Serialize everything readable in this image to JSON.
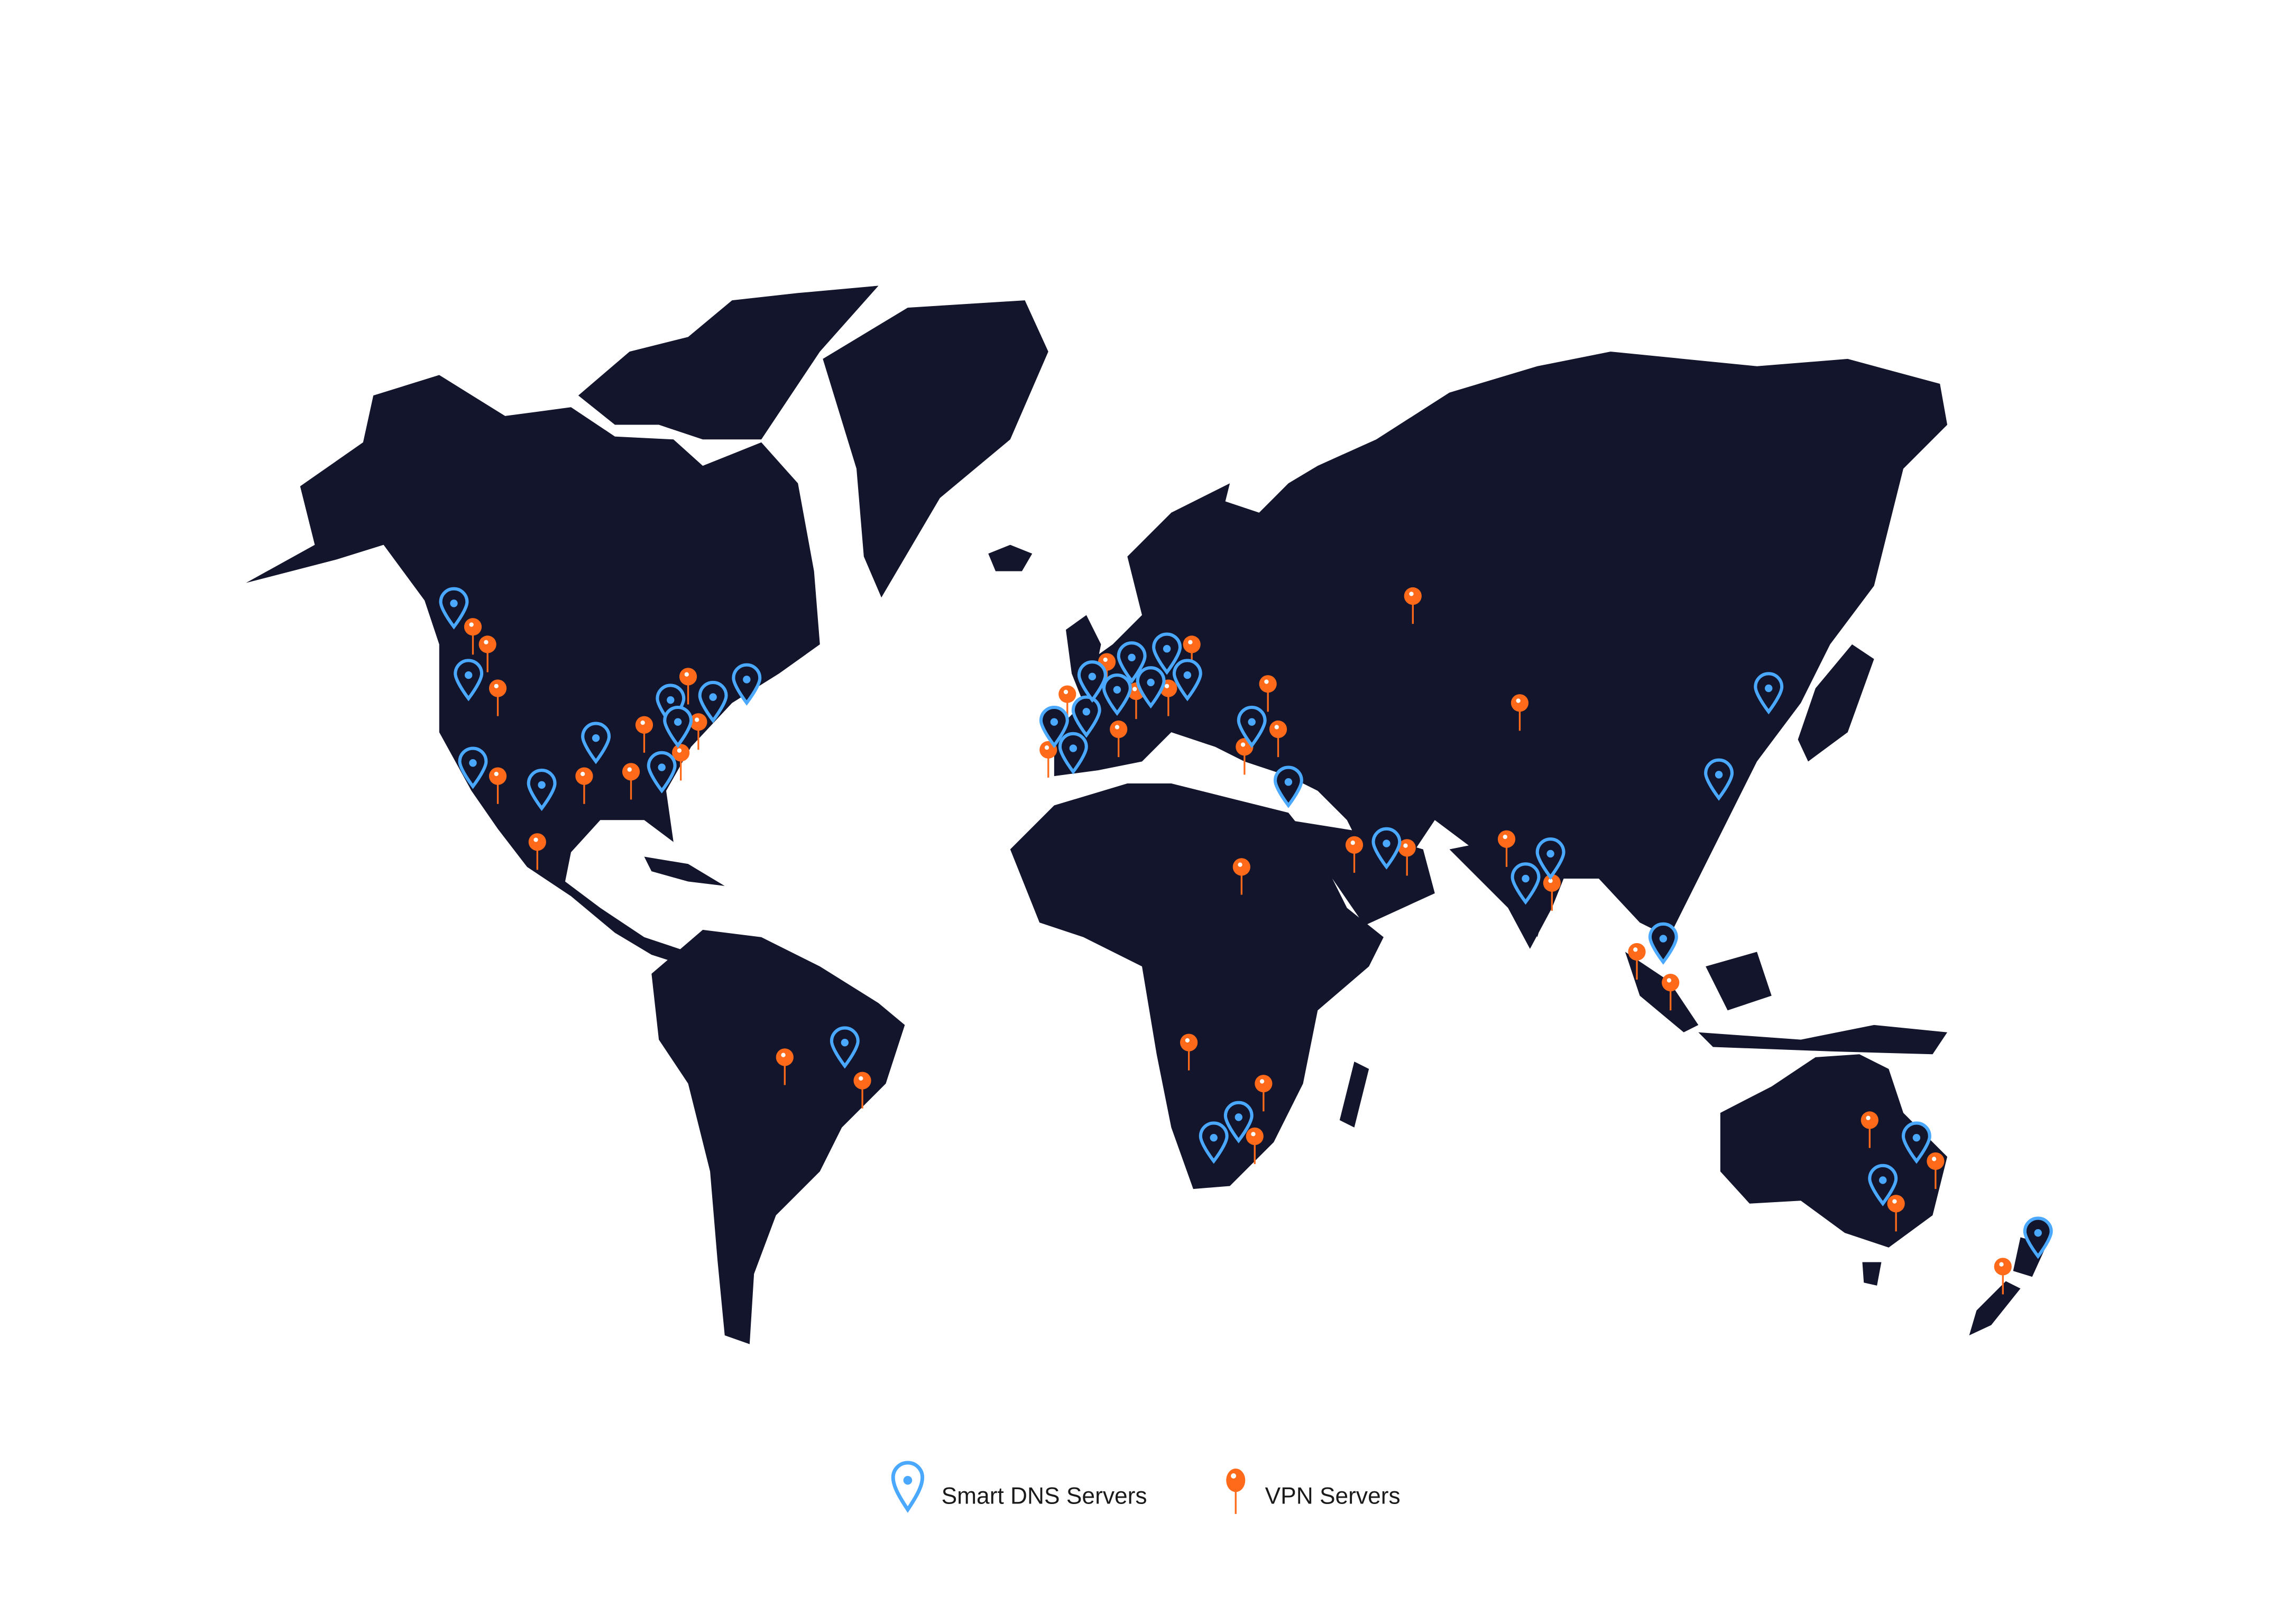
{
  "map": {
    "land_color": "#12152b",
    "background_color": "#ffffff"
  },
  "legend": {
    "items": [
      {
        "label": "Smart DNS Servers",
        "icon": "map-pin-outline-icon",
        "color": "#4aa8ff"
      },
      {
        "label": "VPN Servers",
        "icon": "push-pin-icon",
        "color": "#ff6a1a"
      }
    ]
  }
}
